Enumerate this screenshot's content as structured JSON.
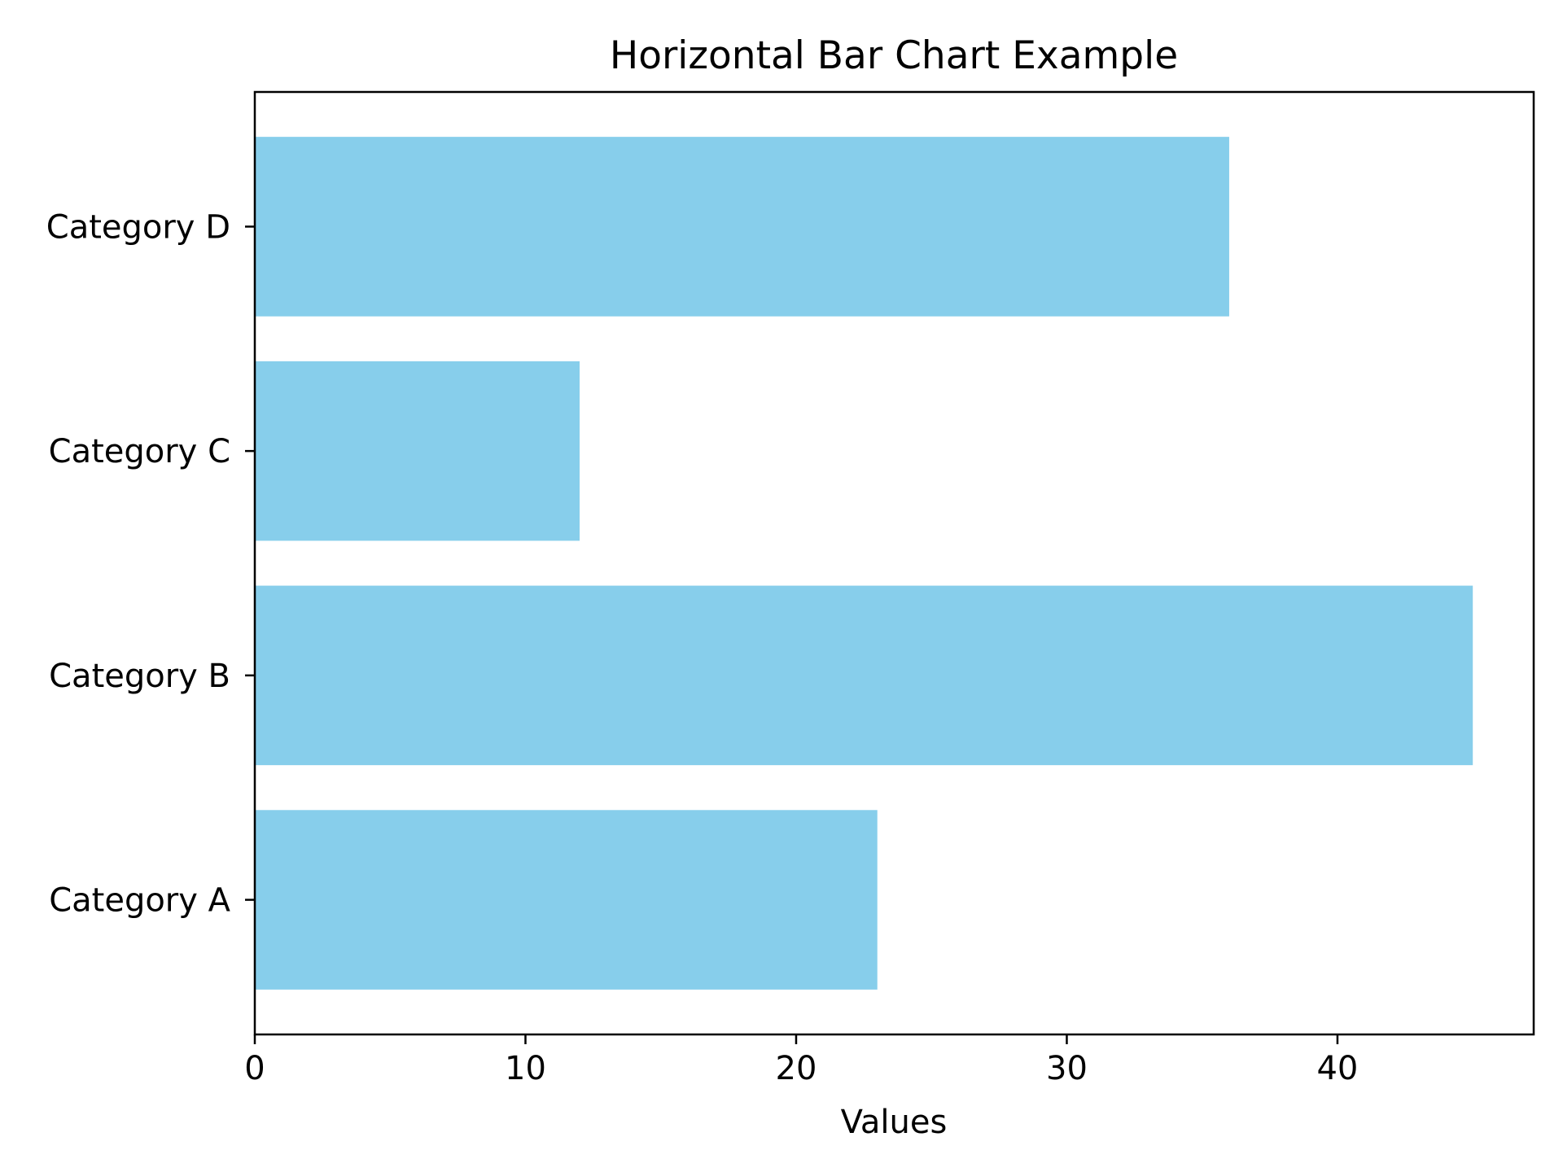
{
  "chart_data": {
    "type": "bar",
    "orientation": "horizontal",
    "title": "Horizontal Bar Chart Example",
    "xlabel": "Values",
    "ylabel": "",
    "categories": [
      "Category A",
      "Category B",
      "Category C",
      "Category D"
    ],
    "values": [
      23,
      45,
      12,
      36
    ],
    "xlim": [
      0,
      47.25
    ],
    "x_ticks": [
      "0",
      "10",
      "20",
      "30",
      "40"
    ],
    "bar_color": "#87CEEB",
    "grid": false,
    "legend": "none"
  }
}
